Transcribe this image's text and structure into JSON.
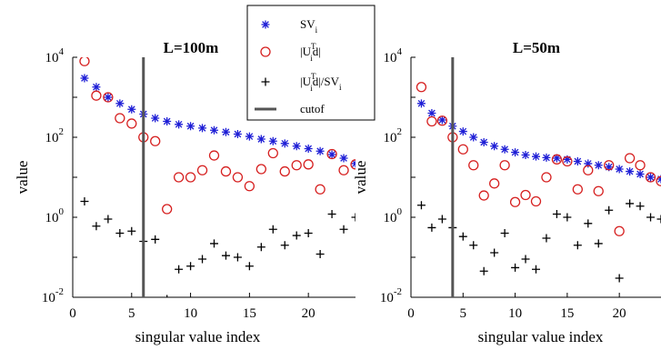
{
  "chart_data": [
    {
      "type": "scatter",
      "title": "L=100m",
      "xlabel": "singular value index",
      "ylabel": "value",
      "yscale": "log",
      "xlim": [
        0,
        24
      ],
      "ylim": [
        0.01,
        10000
      ],
      "xticks": [
        0,
        5,
        10,
        15,
        20
      ],
      "yticks": [
        {
          "value": 0.01,
          "base": "10",
          "exp": "-2"
        },
        {
          "value": 1,
          "base": "10",
          "exp": "0"
        },
        {
          "value": 100,
          "base": "10",
          "exp": "2"
        },
        {
          "value": 10000,
          "base": "10",
          "exp": "4"
        }
      ],
      "cutoff": 6,
      "series": [
        {
          "name": "SV_i",
          "marker": "asterisk",
          "color": "#1f1fd6",
          "x": [
            1,
            2,
            3,
            4,
            5,
            6,
            7,
            8,
            9,
            10,
            11,
            12,
            13,
            14,
            15,
            16,
            17,
            18,
            19,
            20,
            21,
            22,
            23,
            24
          ],
          "y": [
            3000,
            1800,
            1000,
            700,
            500,
            380,
            300,
            250,
            210,
            190,
            170,
            150,
            135,
            120,
            105,
            90,
            80,
            70,
            60,
            52,
            45,
            37,
            30,
            22
          ]
        },
        {
          "name": "|U_i^T d|",
          "marker": "circle",
          "color": "#d62020",
          "x": [
            1,
            2,
            3,
            4,
            5,
            6,
            7,
            8,
            9,
            10,
            11,
            12,
            13,
            14,
            15,
            16,
            17,
            18,
            19,
            20,
            21,
            22,
            23,
            24
          ],
          "y": [
            8000,
            1100,
            1000,
            300,
            220,
            100,
            80,
            1.6,
            10,
            10,
            15,
            35,
            14,
            10,
            6,
            16,
            40,
            14,
            20,
            21,
            5,
            38,
            15,
            21
          ]
        },
        {
          "name": "|U_i^T d|/SV_i",
          "marker": "plus",
          "color": "#000000",
          "x": [
            1,
            2,
            3,
            4,
            5,
            6,
            7,
            8,
            9,
            10,
            11,
            12,
            13,
            14,
            15,
            16,
            17,
            18,
            19,
            20,
            21,
            22,
            23,
            24
          ],
          "y": [
            2.5,
            0.6,
            0.9,
            0.4,
            0.45,
            0.25,
            0.28,
            0.009,
            0.05,
            0.06,
            0.09,
            0.22,
            0.11,
            0.1,
            0.06,
            0.18,
            0.5,
            0.2,
            0.35,
            0.4,
            0.12,
            1.2,
            0.5,
            1.0
          ]
        }
      ]
    },
    {
      "type": "scatter",
      "title": "L=50m",
      "xlabel": "singular value index",
      "ylabel": "value",
      "yscale": "log",
      "xlim": [
        0,
        24
      ],
      "ylim": [
        0.01,
        10000
      ],
      "xticks": [
        0,
        5,
        10,
        15,
        20
      ],
      "yticks": [
        {
          "value": 0.01,
          "base": "10",
          "exp": "-2"
        },
        {
          "value": 1,
          "base": "10",
          "exp": "0"
        },
        {
          "value": 100,
          "base": "10",
          "exp": "2"
        },
        {
          "value": 10000,
          "base": "10",
          "exp": "4"
        }
      ],
      "cutoff": 4,
      "series": [
        {
          "name": "SV_i",
          "marker": "asterisk",
          "color": "#1f1fd6",
          "x": [
            1,
            2,
            3,
            4,
            5,
            6,
            7,
            8,
            9,
            10,
            11,
            12,
            13,
            14,
            15,
            16,
            17,
            18,
            19,
            20,
            21,
            22,
            23,
            24
          ],
          "y": [
            700,
            400,
            270,
            190,
            140,
            100,
            75,
            60,
            50,
            42,
            36,
            33,
            31,
            30,
            28,
            25,
            22,
            20,
            18,
            16,
            14,
            12,
            10,
            9
          ]
        },
        {
          "name": "|U_i^T d|",
          "marker": "circle",
          "color": "#d62020",
          "x": [
            1,
            2,
            3,
            4,
            5,
            6,
            7,
            8,
            9,
            10,
            11,
            12,
            13,
            14,
            15,
            16,
            17,
            18,
            19,
            20,
            21,
            22,
            23,
            24
          ],
          "y": [
            1800,
            250,
            260,
            100,
            50,
            20,
            3.5,
            7,
            20,
            2.4,
            3.6,
            2.5,
            10,
            28,
            25,
            5,
            15,
            4.5,
            20,
            0.45,
            30,
            20,
            10,
            8
          ]
        },
        {
          "name": "|U_i^T d|/SV_i",
          "marker": "plus",
          "color": "#000000",
          "x": [
            1,
            2,
            3,
            4,
            5,
            6,
            7,
            8,
            9,
            10,
            11,
            12,
            13,
            14,
            15,
            16,
            17,
            18,
            19,
            20,
            21,
            22,
            23,
            24
          ],
          "y": [
            2,
            0.55,
            0.9,
            0.55,
            0.33,
            0.2,
            0.045,
            0.13,
            0.4,
            0.055,
            0.09,
            0.05,
            0.3,
            1.2,
            1.0,
            0.2,
            0.7,
            0.22,
            1.5,
            0.03,
            2.2,
            1.9,
            1.0,
            0.9
          ]
        }
      ]
    }
  ],
  "legend": {
    "items": [
      {
        "label_main": "SV",
        "label_sub": "i",
        "label_rest": "",
        "marker": "asterisk",
        "color": "#1f1fd6"
      },
      {
        "label_main": "|U",
        "label_sub": "i",
        "label_sup": "T",
        "label_rest": "d|",
        "marker": "circle",
        "color": "#d62020"
      },
      {
        "label_main": "|U",
        "label_sub": "i",
        "label_sup": "T",
        "label_rest": "d|/SV",
        "label_rest_sub": "i",
        "marker": "plus",
        "color": "#000000"
      },
      {
        "label_main": "cutof",
        "marker": "line",
        "color": "#555555"
      }
    ]
  }
}
